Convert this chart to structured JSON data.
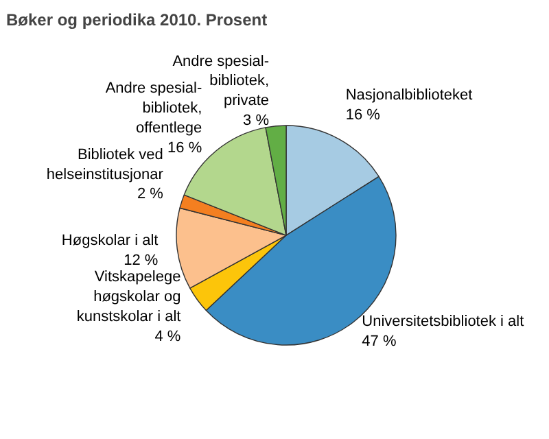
{
  "chart_data": {
    "type": "pie",
    "title": "Bøker og periodika 2010. Prosent",
    "categories": [
      "Nasjonalbiblioteket",
      "Universitetsbibliotek i alt",
      "Vitskapelege\nhøgskolar og\nkunstskolar i alt",
      "Høgskolar i alt",
      "Bibliotek ved\nhelseinstitusjonar",
      "Andre spesial-\nbibliotek,\noffentlege",
      "Andre spesial-\nbibliotek,\nprivate"
    ],
    "values": [
      16,
      47,
      4,
      12,
      2,
      16,
      3
    ],
    "value_labels": [
      "16 %",
      "47 %",
      "4 %",
      "12 %",
      "2 %",
      "16 %",
      "3 %"
    ],
    "colors": [
      "#a6cbe3",
      "#3a8dc4",
      "#fcc50a",
      "#fcc08d",
      "#f47f20",
      "#b3d78d",
      "#62ae45"
    ]
  }
}
